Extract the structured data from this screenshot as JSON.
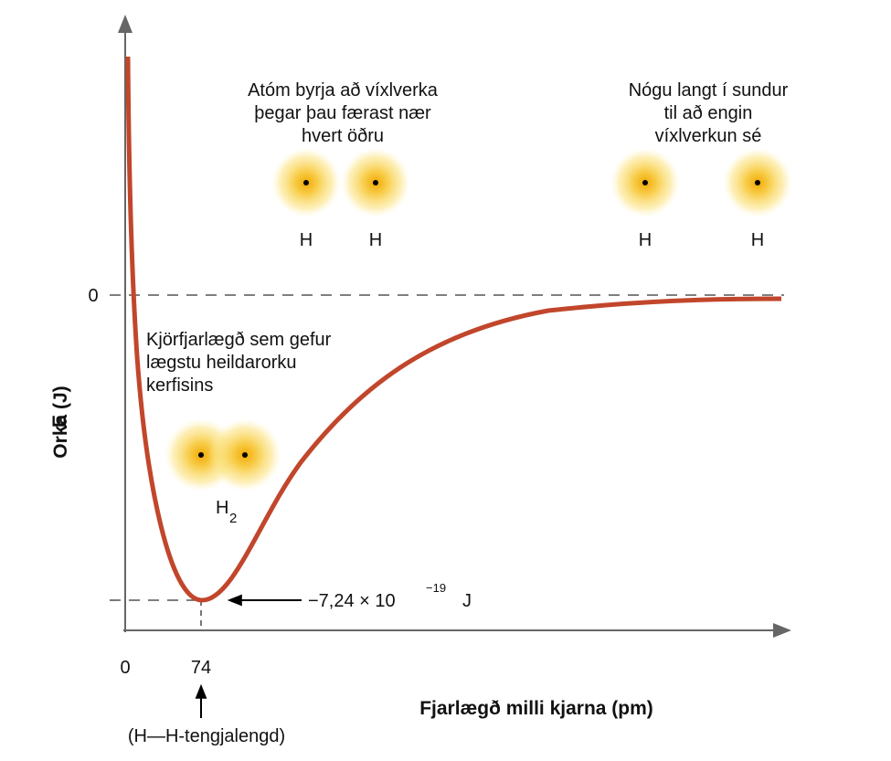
{
  "axes": {
    "y_label_letter": "E",
    "y_label": "Orka (J)",
    "x_label": "Fjarlægð milli kjarna (pm)",
    "x_ticks": [
      "0",
      "74"
    ],
    "y_ticks": [
      "0"
    ],
    "bond_length_note": "(H—H-tengjalengd)"
  },
  "annotations": {
    "interacting": [
      "Atóm byrja að víxlverka",
      "þegar þau færast nær",
      "hvert öðru"
    ],
    "far_apart": [
      "Nógu langt í sundur",
      "til að engin",
      "víxlverkun sé"
    ],
    "optimal": [
      "Kjörfjarlægð sem gefur",
      "lægstu heildarorku",
      "kerfisins"
    ],
    "minimum_energy": {
      "mantissa": "−7,24 × 10",
      "exponent": "−19",
      "unit": "J"
    }
  },
  "atoms": {
    "near_pair": [
      "H",
      "H"
    ],
    "far_pair": [
      "H",
      "H"
    ],
    "molecule": {
      "symbol": "H",
      "subscript": "2"
    }
  }
}
